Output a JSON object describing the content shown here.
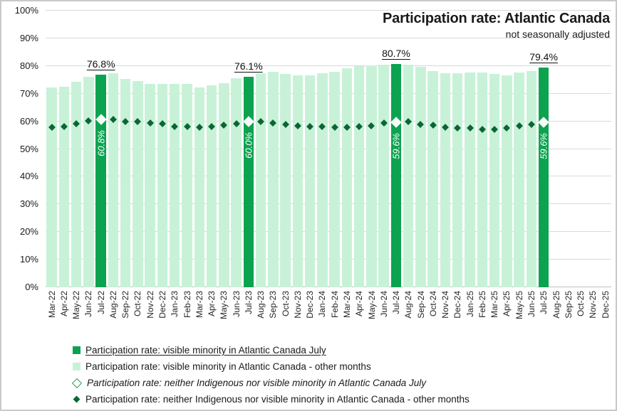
{
  "title": "Participation rate: Atlantic Canada",
  "subtitle": "not seasonally adjusted",
  "colors": {
    "july_bar": "#0ca350",
    "other_bar": "#c8f2d8",
    "july_diamond_fill": "#f4fdf8",
    "other_diamond": "#0b6634",
    "open_diamond_border": "#2f9e5e",
    "gridline": "#d9d9d9",
    "text": "#1a1a1a"
  },
  "chart_data": {
    "type": "bar",
    "title": "Participation rate: Atlantic Canada",
    "subtitle": "not seasonally adjusted",
    "ylim": [
      0,
      100
    ],
    "grid": true,
    "legend_position": "bottom",
    "y_ticks": [
      "0%",
      "10%",
      "20%",
      "30%",
      "40%",
      "50%",
      "60%",
      "70%",
      "80%",
      "90%",
      "100%"
    ],
    "categories": [
      "Mar-22",
      "Apr-22",
      "May-22",
      "Jun-22",
      "Jul-22",
      "Aug-22",
      "Sep-22",
      "Oct-22",
      "Nov-22",
      "Dec-22",
      "Jan-23",
      "Feb-23",
      "Mar-23",
      "Apr-23",
      "May-23",
      "Jun-23",
      "Jul-23",
      "Aug-23",
      "Sep-23",
      "Oct-23",
      "Nov-23",
      "Dec-23",
      "Jan-24",
      "Feb-24",
      "Mar-24",
      "Apr-24",
      "May-24",
      "Jun-24",
      "Jul-24",
      "Aug-24",
      "Sep-24",
      "Oct-24",
      "Nov-24",
      "Dec-24",
      "Jan-25",
      "Feb-25",
      "Mar-25",
      "Apr-25",
      "May-25",
      "Jun-25",
      "Jul-25",
      "Aug-25",
      "Sep-25",
      "Oct-25",
      "Nov-25",
      "Dec-25"
    ],
    "bars": {
      "name": "Participation rate: visible minority in Atlantic Canada",
      "values": [
        72.2,
        72.4,
        74.2,
        76.0,
        76.8,
        77.4,
        75.3,
        74.5,
        73.5,
        73.4,
        73.6,
        73.4,
        72.2,
        73.1,
        73.7,
        75.5,
        76.1,
        77.4,
        77.8,
        77.0,
        76.5,
        76.6,
        77.4,
        77.9,
        79.1,
        80.0,
        80.3,
        80.4,
        80.7,
        80.4,
        79.7,
        78.1,
        77.3,
        77.4,
        77.7,
        77.6,
        77.0,
        76.7,
        77.6,
        78.2,
        79.4,
        null,
        null,
        null,
        null,
        null
      ]
    },
    "diamonds": {
      "name": "Participation rate: neither Indigenous nor visible minority in Atlantic Canada",
      "values": [
        57.8,
        58.1,
        59.1,
        60.2,
        60.8,
        60.6,
        59.9,
        59.9,
        59.3,
        59.1,
        58.2,
        58.1,
        57.8,
        58.1,
        58.7,
        59.2,
        60.0,
        59.8,
        59.5,
        58.9,
        58.3,
        58.1,
        58.1,
        57.8,
        57.8,
        58.1,
        58.3,
        59.4,
        59.6,
        59.8,
        58.8,
        58.5,
        57.8,
        57.6,
        57.5,
        57.2,
        57.2,
        57.5,
        58.3,
        58.9,
        59.6,
        null,
        null,
        null,
        null,
        null
      ]
    },
    "july": {
      "indices": [
        4,
        16,
        28,
        40
      ],
      "bar_value_labels": [
        "76.8%",
        "76.1%",
        "80.7%",
        "79.4%"
      ],
      "diamond_value_labels": [
        "60.8%",
        "60.0%",
        "59.6%",
        "59.6%"
      ]
    }
  },
  "legend": {
    "items": [
      {
        "label": "Participation rate: visible minority in Atlantic Canada July",
        "marker": "square-dark",
        "underline": true,
        "italic": false
      },
      {
        "label": "Participation rate: visible minority in Atlantic Canada - other months",
        "marker": "square-light",
        "underline": false,
        "italic": false
      },
      {
        "label": "Participation rate: neither Indigenous nor visible minority in Atlantic Canada July",
        "marker": "diamond-open",
        "underline": false,
        "italic": true
      },
      {
        "label": "Participation rate: neither Indigenous nor visible minority in Atlantic Canada - other months",
        "marker": "diamond-filled",
        "underline": false,
        "italic": false
      }
    ]
  }
}
